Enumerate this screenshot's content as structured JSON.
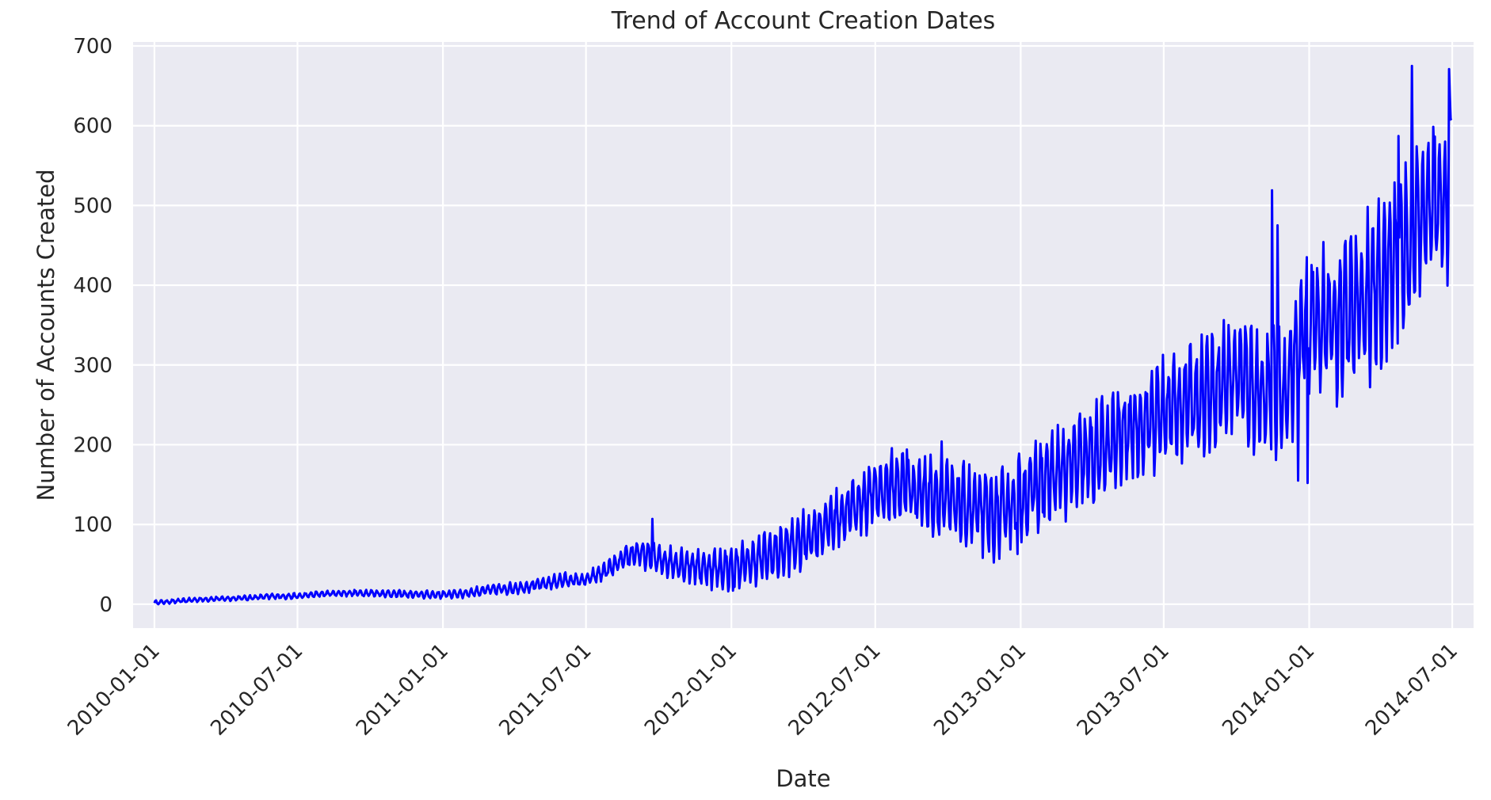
{
  "chart_data": {
    "type": "line",
    "title": "Trend of Account Creation Dates",
    "xlabel": "Date",
    "ylabel": "Number of Accounts Created",
    "x_range": [
      "2009-12-05",
      "2014-07-28"
    ],
    "xlim": [
      -27,
      1669
    ],
    "ylim": [
      -30,
      705
    ],
    "x_ticks": [
      "2010-01-01",
      "2010-07-01",
      "2011-01-01",
      "2011-07-01",
      "2012-01-01",
      "2012-07-01",
      "2013-01-01",
      "2013-07-01",
      "2014-01-01",
      "2014-07-01"
    ],
    "y_ticks": [
      0,
      100,
      200,
      300,
      400,
      500,
      600,
      700
    ],
    "grid": true,
    "legend": "none",
    "background": "#eaeaf2",
    "line_color": "#0000ff",
    "series": [
      {
        "points": [
          [
            "2010-01-01",
            2
          ],
          [
            "2010-02-01",
            4
          ],
          [
            "2010-03-01",
            6
          ],
          [
            "2010-04-01",
            7
          ],
          [
            "2010-05-01",
            8
          ],
          [
            "2010-06-01",
            10
          ],
          [
            "2010-07-01",
            10
          ],
          [
            "2010-08-01",
            13
          ],
          [
            "2010-09-01",
            14
          ],
          [
            "2010-10-01",
            14
          ],
          [
            "2010-11-01",
            13
          ],
          [
            "2010-12-01",
            12
          ],
          [
            "2011-01-01",
            12
          ],
          [
            "2011-02-01",
            14
          ],
          [
            "2011-03-01",
            18
          ],
          [
            "2011-04-01",
            20
          ],
          [
            "2011-05-01",
            24
          ],
          [
            "2011-06-01",
            30
          ],
          [
            "2011-07-01",
            30
          ],
          [
            "2011-08-01",
            45
          ],
          [
            "2011-09-01",
            65
          ],
          [
            "2011-10-01",
            55
          ],
          [
            "2011-11-01",
            50
          ],
          [
            "2011-12-01",
            45
          ],
          [
            "2012-01-01",
            45
          ],
          [
            "2012-02-01",
            55
          ],
          [
            "2012-03-01",
            65
          ],
          [
            "2012-04-01",
            80
          ],
          [
            "2012-05-01",
            100
          ],
          [
            "2012-06-01",
            120
          ],
          [
            "2012-07-01",
            140
          ],
          [
            "2012-08-01",
            150
          ],
          [
            "2012-09-01",
            140
          ],
          [
            "2012-10-01",
            130
          ],
          [
            "2012-11-01",
            120
          ],
          [
            "2012-12-01",
            110
          ],
          [
            "2013-01-01",
            135
          ],
          [
            "2013-02-01",
            155
          ],
          [
            "2013-03-01",
            170
          ],
          [
            "2013-04-01",
            185
          ],
          [
            "2013-05-01",
            205
          ],
          [
            "2013-06-01",
            225
          ],
          [
            "2013-07-01",
            240
          ],
          [
            "2013-08-01",
            255
          ],
          [
            "2013-09-01",
            270
          ],
          [
            "2013-10-01",
            290
          ],
          [
            "2013-11-01",
            265
          ],
          [
            "2013-12-01",
            265
          ],
          [
            "2014-01-01",
            360
          ],
          [
            "2014-02-01",
            350
          ],
          [
            "2014-03-01",
            370
          ],
          [
            "2014-04-01",
            400
          ],
          [
            "2014-05-01",
            450
          ],
          [
            "2014-06-01",
            500
          ],
          [
            "2014-06-30",
            520
          ]
        ],
        "spikes": [
          [
            "2011-09-23",
            107
          ],
          [
            "2012-08-10",
            194
          ],
          [
            "2012-09-23",
            204
          ],
          [
            "2013-11-15",
            519
          ],
          [
            "2013-11-22",
            475
          ],
          [
            "2014-04-24",
            587
          ],
          [
            "2014-05-11",
            675
          ],
          [
            "2014-06-27",
            671
          ]
        ],
        "dips": [
          [
            "2012-01-03",
            17
          ],
          [
            "2012-12-05",
            57
          ],
          [
            "2012-12-28",
            63
          ],
          [
            "2013-12-18",
            155
          ],
          [
            "2013-12-30",
            152
          ]
        ],
        "weekly_amplitude": [
          [
            "2010-01-01",
            2
          ],
          [
            "2011-01-01",
            4
          ],
          [
            "2011-07-01",
            8
          ],
          [
            "2012-01-01",
            22
          ],
          [
            "2012-07-01",
            35
          ],
          [
            "2013-01-01",
            45
          ],
          [
            "2013-07-01",
            55
          ],
          [
            "2014-01-01",
            70
          ],
          [
            "2014-07-01",
            105
          ]
        ]
      }
    ]
  }
}
